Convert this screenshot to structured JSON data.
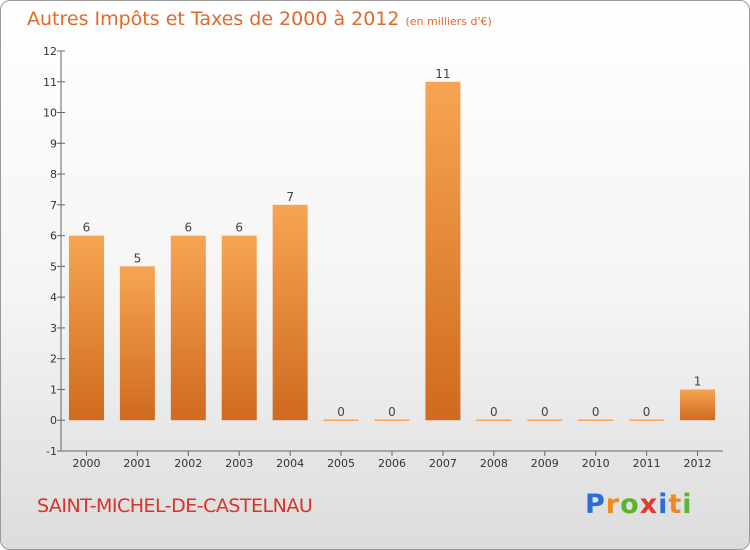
{
  "header": {
    "title": "Autres Impôts et Taxes de 2000 à 2012",
    "unit": "(en milliers d'€)"
  },
  "footer": {
    "commune": "SAINT-MICHEL-DE-CASTELNAU",
    "logo_parts": [
      "P",
      "r",
      "o",
      "x",
      "i",
      "t",
      "i"
    ],
    "logo_colors": [
      "#2b6fd6",
      "#f08a1c",
      "#59b52a",
      "#e23a2e",
      "#2b6fd6",
      "#f08a1c",
      "#59b52a"
    ]
  },
  "chart_data": {
    "type": "bar",
    "title": "Autres Impôts et Taxes de 2000 à 2012",
    "subtitle": "(en milliers d'€)",
    "xlabel": "",
    "ylabel": "",
    "categories": [
      "2000",
      "2001",
      "2002",
      "2003",
      "2004",
      "2005",
      "2006",
      "2007",
      "2008",
      "2009",
      "2010",
      "2011",
      "2012"
    ],
    "values": [
      6,
      5,
      6,
      6,
      7,
      0,
      0,
      11,
      0,
      0,
      0,
      0,
      1
    ],
    "ylim": [
      -1,
      12
    ],
    "yticks": [
      -1,
      0,
      1,
      2,
      3,
      4,
      5,
      6,
      7,
      8,
      9,
      10,
      11,
      12
    ],
    "grid": false,
    "legend": "none",
    "colors": {
      "bar_light": "#f7a552",
      "bar_dark": "#cf6a1f",
      "axis": "#666666"
    }
  }
}
